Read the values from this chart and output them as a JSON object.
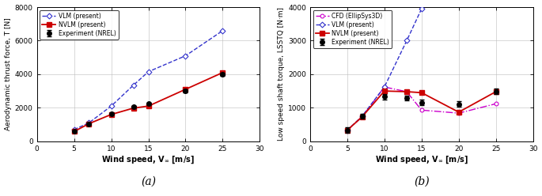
{
  "left": {
    "exp_x": [
      5,
      7,
      10,
      13,
      15,
      20,
      25
    ],
    "exp_y": [
      620,
      1050,
      1650,
      2050,
      2250,
      3000,
      4000
    ],
    "exp_yerr": [
      40,
      50,
      60,
      60,
      70,
      90,
      110
    ],
    "vlm_x": [
      5,
      7,
      10,
      13,
      15,
      20,
      25
    ],
    "vlm_y": [
      700,
      1100,
      2100,
      3350,
      4150,
      5100,
      6600
    ],
    "nvlm_x": [
      5,
      7,
      10,
      13,
      15,
      20,
      25
    ],
    "nvlm_y": [
      580,
      1050,
      1600,
      1980,
      2100,
      3100,
      4100
    ],
    "ylabel": "Aerodynamic thrust force, T [N]",
    "ylim": [
      0,
      8000
    ],
    "xlim": [
      0,
      30
    ],
    "xticks": [
      0,
      5,
      10,
      15,
      20,
      25,
      30
    ],
    "yticks": [
      0,
      2000,
      4000,
      6000,
      8000
    ],
    "label": "(a)"
  },
  "right": {
    "exp_x": [
      5,
      7,
      10,
      13,
      15,
      20,
      25
    ],
    "exp_y": [
      330,
      750,
      1330,
      1290,
      1160,
      1110,
      1490
    ],
    "exp_yerr": [
      80,
      80,
      80,
      70,
      80,
      80,
      80
    ],
    "cfd_x": [
      5,
      7,
      10,
      13,
      15,
      20,
      25
    ],
    "cfd_y": [
      330,
      730,
      1620,
      1480,
      930,
      840,
      1120
    ],
    "vlm_x": [
      5,
      7,
      10,
      13,
      15
    ],
    "vlm_y": [
      330,
      750,
      1620,
      3000,
      3950
    ],
    "nvlm_x": [
      5,
      7,
      10,
      13,
      15,
      20,
      25
    ],
    "nvlm_y": [
      330,
      730,
      1500,
      1480,
      1450,
      870,
      1480
    ],
    "ylabel": "Low speed shaft torque, LSSTQ [N·m]",
    "ylim": [
      0,
      4000
    ],
    "xlim": [
      0,
      30
    ],
    "xticks": [
      0,
      5,
      10,
      15,
      20,
      25,
      30
    ],
    "yticks": [
      0,
      1000,
      2000,
      3000,
      4000
    ],
    "label": "(b)"
  },
  "colors": {
    "exp": "#000000",
    "vlm": "#3333cc",
    "nvlm": "#cc0000",
    "cfd": "#cc00cc"
  },
  "legend_left": [
    "Experiment (NREL)",
    "VLM (present)",
    "NVLM (present)"
  ],
  "legend_right": [
    "Experiment (NREL)",
    "CFD (EllipSys3D)",
    "VLM (present)",
    "NVLM (present)"
  ]
}
